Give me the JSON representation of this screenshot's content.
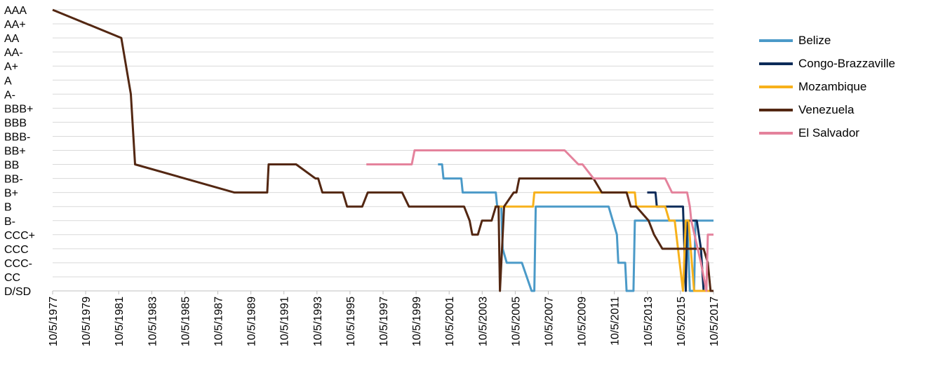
{
  "chart_data": {
    "type": "line",
    "title": "",
    "xlabel": "",
    "ylabel": "",
    "y_categories": [
      "D/SD",
      "CC",
      "CCC-",
      "CCC",
      "CCC+",
      "B-",
      "B",
      "B+",
      "BB-",
      "BB",
      "BB+",
      "BBB-",
      "BBB",
      "BBB+",
      "A-",
      "A",
      "A+",
      "AA-",
      "AA",
      "AA+",
      "AAA"
    ],
    "x_ticks": [
      "10/5/1977",
      "10/5/1979",
      "10/5/1981",
      "10/5/1983",
      "10/5/1985",
      "10/5/1987",
      "10/5/1989",
      "10/5/1991",
      "10/5/1993",
      "10/5/1995",
      "10/5/1997",
      "10/5/1999",
      "10/5/2001",
      "10/5/2003",
      "10/5/2005",
      "10/5/2007",
      "10/5/2009",
      "10/5/2011",
      "10/5/2013",
      "10/5/2015",
      "10/5/2017"
    ],
    "xlim": [
      "10/5/1977",
      "10/5/2017"
    ],
    "grid": true,
    "legend_position": "right",
    "series": [
      {
        "name": "Belize",
        "color": "#4b9ac8",
        "points": [
          [
            "2/1/2001",
            "BB"
          ],
          [
            "5/1/2001",
            "BB"
          ],
          [
            "6/1/2001",
            "BB-"
          ],
          [
            "11/1/2001",
            "BB-"
          ],
          [
            "12/1/2001",
            "BB-"
          ],
          [
            "7/1/2002",
            "BB-"
          ],
          [
            "8/1/2002",
            "B+"
          ],
          [
            "8/1/2004",
            "B+"
          ],
          [
            "9/1/2004",
            "B"
          ],
          [
            "12/1/2004",
            "B"
          ],
          [
            "1/1/2005",
            "CCC"
          ],
          [
            "4/1/2005",
            "CCC-"
          ],
          [
            "3/1/2006",
            "CCC-"
          ],
          [
            "10/1/2006",
            "D/SD"
          ],
          [
            "12/1/2006",
            "D/SD"
          ],
          [
            "1/1/2007",
            "B"
          ],
          [
            "6/1/2011",
            "B"
          ],
          [
            "12/1/2011",
            "CCC+"
          ],
          [
            "1/1/2012",
            "CCC-"
          ],
          [
            "6/1/2012",
            "CCC-"
          ],
          [
            "7/1/2012",
            "D/SD"
          ],
          [
            "12/1/2012",
            "D/SD"
          ],
          [
            "1/1/2013",
            "B-"
          ],
          [
            "12/1/2015",
            "B-"
          ],
          [
            "3/1/2016",
            "B-"
          ],
          [
            "5/1/2016",
            "D/SD"
          ],
          [
            "8/1/2016",
            "D/SD"
          ],
          [
            "9/1/2016",
            "B-"
          ],
          [
            "6/1/2017",
            "B-"
          ],
          [
            "10/5/2017",
            "B-"
          ]
        ]
      },
      {
        "name": "Congo-Brazzaville",
        "color": "#0c2b59",
        "points": [
          [
            "10/1/2013",
            "B+"
          ],
          [
            "4/1/2014",
            "B+"
          ],
          [
            "5/1/2014",
            "B"
          ],
          [
            "6/1/2015",
            "B"
          ],
          [
            "12/1/2015",
            "B"
          ],
          [
            "2/1/2016",
            "D/SD"
          ],
          [
            "3/1/2016",
            "B-"
          ],
          [
            "8/1/2016",
            "B-"
          ],
          [
            "10/1/2016",
            "B-"
          ],
          [
            "1/1/2017",
            "CCC"
          ],
          [
            "3/1/2017",
            "D/SD"
          ],
          [
            "7/1/2017",
            "D/SD"
          ],
          [
            "8/1/2017",
            "D/SD"
          ]
        ]
      },
      {
        "name": "Mozambique",
        "color": "#f7b11b",
        "points": [
          [
            "7/1/2004",
            "B"
          ],
          [
            "8/1/2004",
            "B"
          ],
          [
            "11/1/2006",
            "B"
          ],
          [
            "12/1/2006",
            "B+"
          ],
          [
            "11/1/2012",
            "B+"
          ],
          [
            "12/1/2012",
            "B+"
          ],
          [
            "1/1/2013",
            "B+"
          ],
          [
            "2/1/2013",
            "B"
          ],
          [
            "11/1/2014",
            "B"
          ],
          [
            "2/1/2015",
            "B-"
          ],
          [
            "6/1/2015",
            "B-"
          ],
          [
            "12/1/2015",
            "D/SD"
          ],
          [
            "2/1/2016",
            "B-"
          ],
          [
            "4/1/2016",
            "B-"
          ],
          [
            "8/1/2016",
            "D/SD"
          ],
          [
            "2/1/2017",
            "D/SD"
          ],
          [
            "10/5/2017",
            "D/SD"
          ]
        ]
      },
      {
        "name": "Venezuela",
        "color": "#532712",
        "points": [
          [
            "10/5/1977",
            "AAA"
          ],
          [
            "12/1/1981",
            "AA"
          ],
          [
            "7/1/1982",
            "A-"
          ],
          [
            "10/1/1982",
            "BB"
          ],
          [
            "10/1/1988",
            "B+"
          ],
          [
            "10/1/1990",
            "B+"
          ],
          [
            "11/1/1990",
            "BB"
          ],
          [
            "7/1/1992",
            "BB"
          ],
          [
            "9/1/1993",
            "BB-"
          ],
          [
            "11/1/1993",
            "BB-"
          ],
          [
            "2/1/1994",
            "B+"
          ],
          [
            "5/1/1995",
            "B+"
          ],
          [
            "8/1/1995",
            "B"
          ],
          [
            "7/1/1996",
            "B"
          ],
          [
            "11/1/1996",
            "B+"
          ],
          [
            "12/1/1998",
            "B+"
          ],
          [
            "5/1/1999",
            "B"
          ],
          [
            "6/1/2001",
            "B"
          ],
          [
            "9/1/2002",
            "B"
          ],
          [
            "1/1/2003",
            "B-"
          ],
          [
            "3/1/2003",
            "CCC+"
          ],
          [
            "7/1/2003",
            "CCC+"
          ],
          [
            "10/1/2003",
            "B-"
          ],
          [
            "5/1/2004",
            "B-"
          ],
          [
            "8/1/2004",
            "B"
          ],
          [
            "10/1/2004",
            "B"
          ],
          [
            "11/1/2004",
            "D/SD"
          ],
          [
            "2/1/2005",
            "B"
          ],
          [
            "9/1/2005",
            "B+"
          ],
          [
            "11/1/2005",
            "B+"
          ],
          [
            "1/1/2006",
            "BB-"
          ],
          [
            "7/1/2010",
            "BB-"
          ],
          [
            "1/1/2011",
            "B+"
          ],
          [
            "12/1/2011",
            "B+"
          ],
          [
            "7/1/2012",
            "B+"
          ],
          [
            "10/1/2012",
            "B"
          ],
          [
            "2/1/2013",
            "B"
          ],
          [
            "11/1/2013",
            "B-"
          ],
          [
            "3/1/2014",
            "CCC+"
          ],
          [
            "9/1/2014",
            "CCC"
          ],
          [
            "10/1/2014",
            "CCC"
          ],
          [
            "7/1/2015",
            "CCC"
          ],
          [
            "2/1/2016",
            "CCC"
          ],
          [
            "6/1/2016",
            "CCC"
          ],
          [
            "3/1/2017",
            "CCC"
          ],
          [
            "6/1/2017",
            "CCC-"
          ],
          [
            "8/1/2017",
            "D/SD"
          ],
          [
            "10/5/2017",
            "D/SD"
          ]
        ]
      },
      {
        "name": "El Salvador",
        "color": "#e4829c",
        "points": [
          [
            "10/1/1996",
            "BB"
          ],
          [
            "12/1/1997",
            "BB"
          ],
          [
            "1/1/1998",
            "BB"
          ],
          [
            "7/1/1999",
            "BB"
          ],
          [
            "9/1/1999",
            "BB+"
          ],
          [
            "10/1/2008",
            "BB+"
          ],
          [
            "8/1/2009",
            "BB"
          ],
          [
            "11/1/2009",
            "BB"
          ],
          [
            "7/1/2010",
            "BB-"
          ],
          [
            "12/1/2013",
            "BB-"
          ],
          [
            "11/1/2014",
            "BB-"
          ],
          [
            "4/1/2015",
            "B+"
          ],
          [
            "10/1/2015",
            "B+"
          ],
          [
            "3/1/2016",
            "B+"
          ],
          [
            "5/1/2016",
            "B"
          ],
          [
            "6/1/2016",
            "B-"
          ],
          [
            "1/1/2017",
            "CCC-"
          ],
          [
            "5/1/2017",
            "D/SD"
          ],
          [
            "6/1/2017",
            "CCC+"
          ],
          [
            "10/5/2017",
            "CCC+"
          ]
        ]
      }
    ]
  }
}
